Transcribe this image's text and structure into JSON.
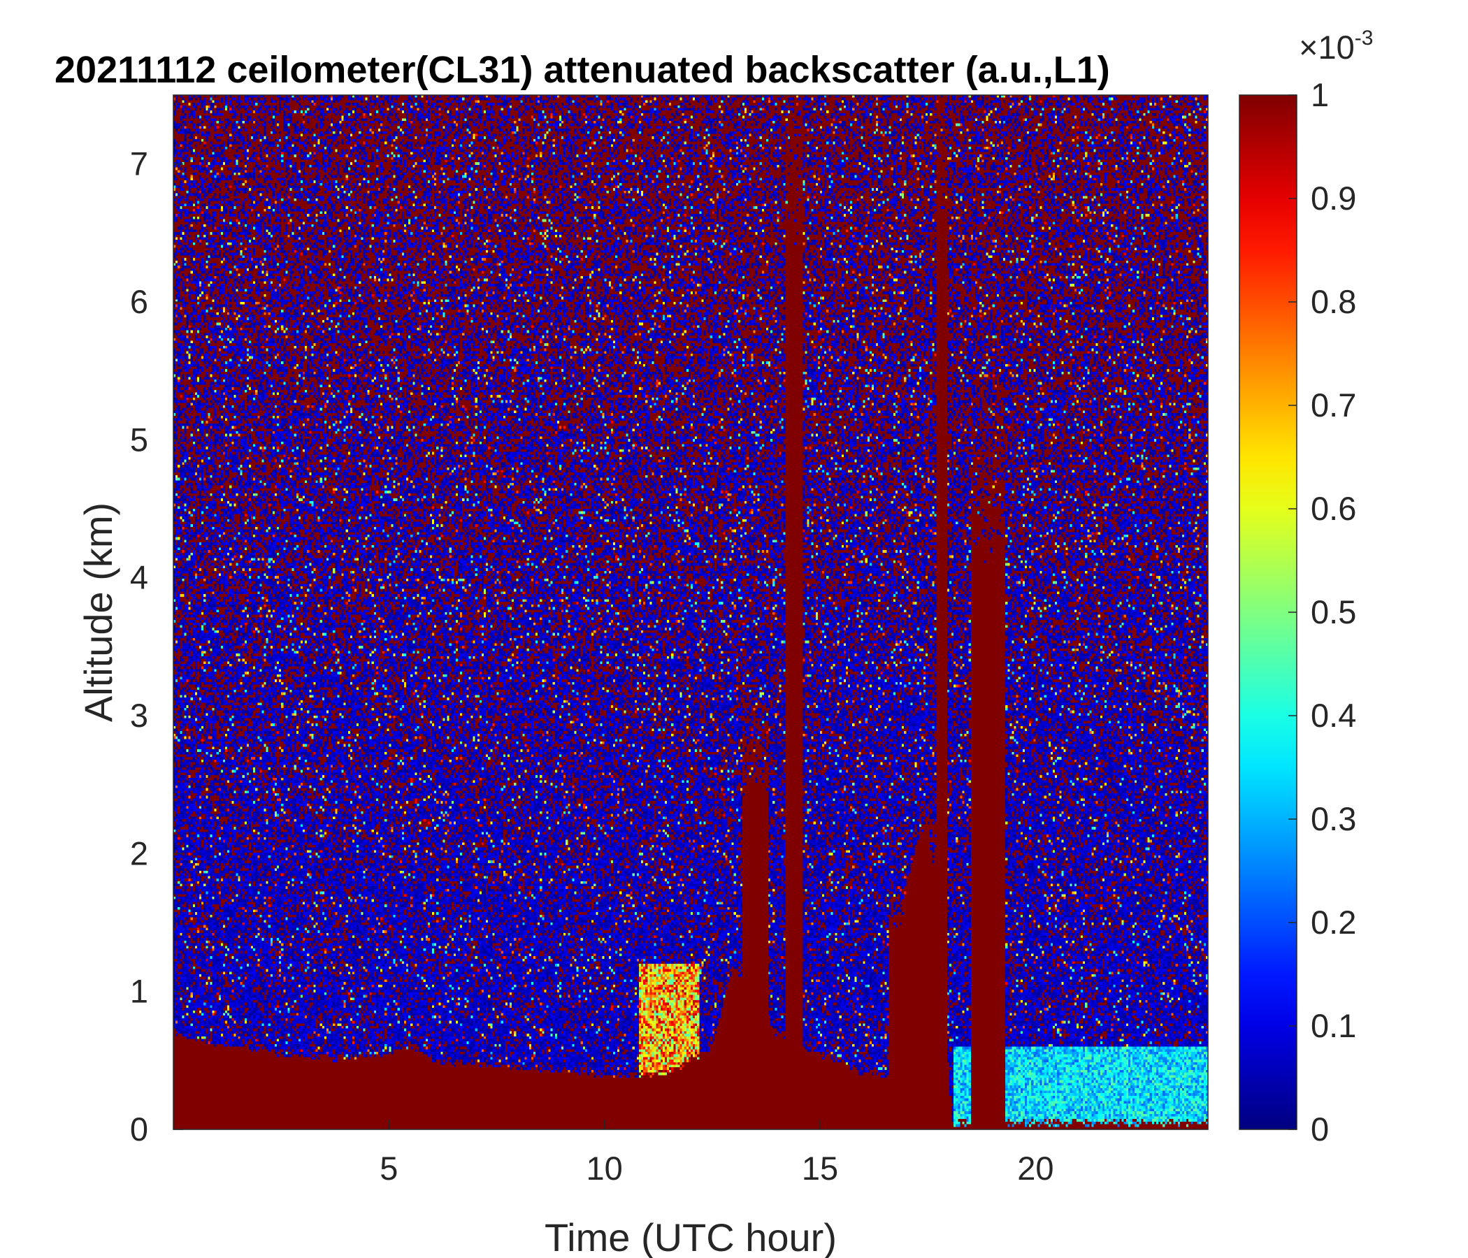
{
  "chart_data": {
    "type": "heatmap",
    "title": "20211112 ceilometer(CL31) attenuated backscatter (a.u.,L1)",
    "xlabel": "Time (UTC hour)",
    "ylabel": "Altitude (km)",
    "xlim": [
      0,
      24
    ],
    "ylim": [
      0,
      7.5
    ],
    "x_ticks": [
      "5",
      "10",
      "15",
      "20"
    ],
    "x_tick_values": [
      5,
      10,
      15,
      20
    ],
    "y_ticks": [
      "0",
      "1",
      "2",
      "3",
      "4",
      "5",
      "6",
      "7"
    ],
    "y_tick_values": [
      0,
      1,
      2,
      3,
      4,
      5,
      6,
      7
    ],
    "colorbar": {
      "colormap": "jet",
      "range": [
        0,
        1
      ],
      "ticks": [
        "0",
        "0.1",
        "0.2",
        "0.3",
        "0.4",
        "0.5",
        "0.6",
        "0.7",
        "0.8",
        "0.9",
        "1"
      ],
      "tick_values": [
        0,
        0.1,
        0.2,
        0.3,
        0.4,
        0.5,
        0.6,
        0.7,
        0.8,
        0.9,
        1
      ],
      "exponent_base": "×10",
      "exponent_power": "-3"
    },
    "features": {
      "surface_layer_top_km": [
        [
          0,
          0.7
        ],
        [
          0.5,
          0.65
        ],
        [
          1,
          0.62
        ],
        [
          2,
          0.58
        ],
        [
          3,
          0.53
        ],
        [
          4,
          0.52
        ],
        [
          5,
          0.55
        ],
        [
          5.5,
          0.62
        ],
        [
          6,
          0.5
        ],
        [
          7,
          0.47
        ],
        [
          8,
          0.45
        ],
        [
          9,
          0.43
        ],
        [
          10,
          0.4
        ],
        [
          10.5,
          0.38
        ],
        [
          11.5,
          0.42
        ],
        [
          12.5,
          0.6
        ],
        [
          13,
          1.2
        ],
        [
          13.5,
          0.9
        ],
        [
          14,
          0.7
        ],
        [
          15,
          0.55
        ],
        [
          16,
          0.42
        ],
        [
          16.6,
          0.38
        ],
        [
          17,
          1.8
        ],
        [
          17.5,
          2.3
        ],
        [
          18,
          0.4
        ],
        [
          18.05,
          0.05
        ],
        [
          24,
          0.05
        ]
      ],
      "cloud_plumes": [
        {
          "x0": 13.2,
          "x1": 13.8,
          "top_km": 2.8
        },
        {
          "x0": 16.6,
          "x1": 17.2,
          "top_km": 1.6
        },
        {
          "x0": 17.3,
          "x1": 17.95,
          "top_km": 2.1
        },
        {
          "x0": 17.7,
          "x1": 17.95,
          "top_km": 7.5
        },
        {
          "x0": 18.5,
          "x1": 19.3,
          "top_km": 4.8
        },
        {
          "x0": 14.2,
          "x1": 14.6,
          "top_km": 7.5
        }
      ],
      "aerosol_hotspot": {
        "x0": 10.8,
        "x1": 12.2,
        "y0": 0.35,
        "y1": 1.2
      },
      "clear_low_layer": {
        "x0": 18.1,
        "x1": 24,
        "y0": 0.0,
        "y1": 0.6
      }
    }
  }
}
